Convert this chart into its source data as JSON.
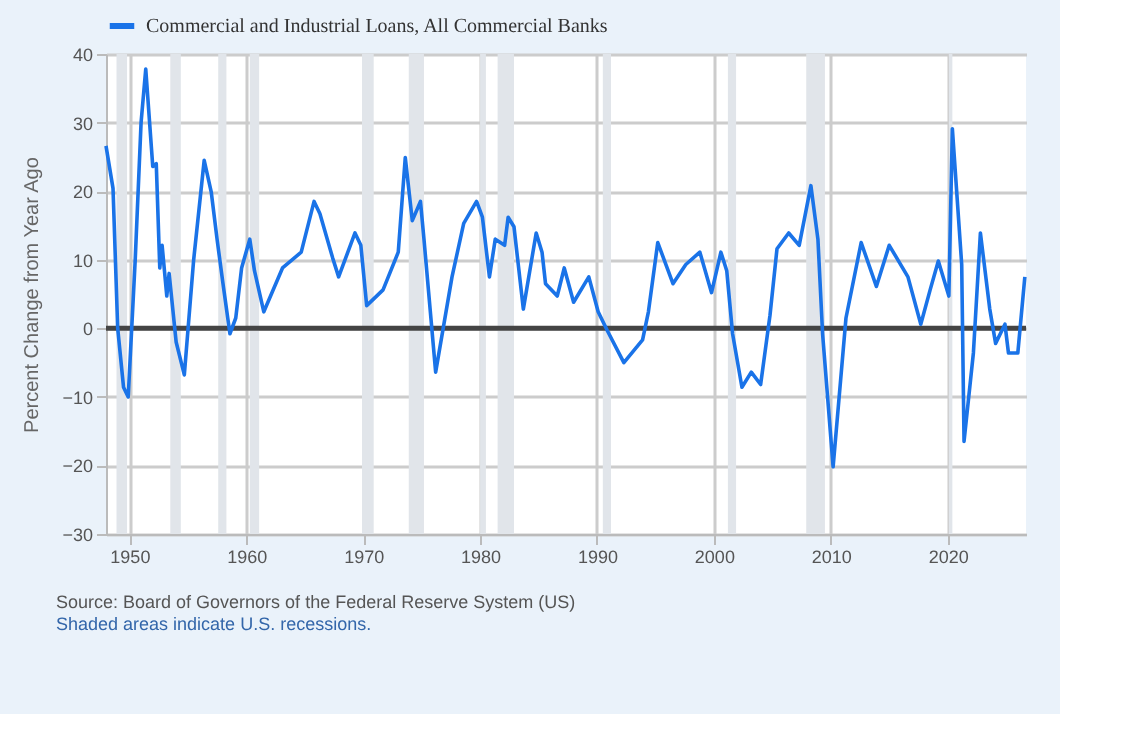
{
  "chart_data": {
    "type": "line",
    "ylabel": "Percent Change from Year Ago",
    "xlim": [
      1948,
      2026.7
    ],
    "xticks": [
      1950,
      1960,
      1970,
      1980,
      1990,
      2000,
      2010,
      2020
    ],
    "ylim": [
      -30,
      40
    ],
    "yticks": [
      -30,
      -20,
      -10,
      0,
      10,
      20,
      30,
      40
    ],
    "grid": true,
    "legend": "top left",
    "marker": "none",
    "line_style": "solid",
    "series": [
      {
        "name": "Commercial and Industrial Loans, All Commercial Banks",
        "color": "#1a73e8",
        "x": [
          1948.0,
          1948.6,
          1949.0,
          1949.5,
          1949.9,
          1950.5,
          1951.0,
          1951.4,
          1952.0,
          1952.3,
          1952.6,
          1952.8,
          1953.2,
          1953.4,
          1954.0,
          1954.7,
          1955.5,
          1956.4,
          1957.0,
          1957.5,
          1958.0,
          1958.6,
          1959.1,
          1959.6,
          1960.3,
          1960.7,
          1961.5,
          1963.1,
          1964.7,
          1965.8,
          1966.3,
          1967.4,
          1967.9,
          1969.3,
          1969.8,
          1970.3,
          1971.7,
          1973.0,
          1973.6,
          1974.2,
          1974.9,
          1975.2,
          1976.2,
          1977.6,
          1978.6,
          1979.7,
          1980.2,
          1980.8,
          1981.3,
          1982.1,
          1982.4,
          1982.9,
          1983.7,
          1984.8,
          1985.3,
          1985.6,
          1986.6,
          1987.2,
          1988.0,
          1989.3,
          1990.1,
          1990.9,
          1992.3,
          1993.9,
          1994.4,
          1995.2,
          1996.5,
          1997.6,
          1998.8,
          1999.8,
          2000.6,
          2001.1,
          2001.6,
          2002.4,
          2003.2,
          2004.0,
          2004.8,
          2005.4,
          2006.4,
          2007.3,
          2008.3,
          2008.9,
          2009.3,
          2010.2,
          2011.3,
          2012.6,
          2013.9,
          2015.0,
          2016.6,
          2017.7,
          2018.5,
          2019.2,
          2020.1,
          2020.4,
          2021.2,
          2021.4,
          2022.2,
          2022.8,
          2023.6,
          2024.1,
          2024.9,
          2025.2,
          2026.0,
          2026.6
        ],
        "values": [
          26.6,
          20.4,
          0,
          -8.6,
          -10.0,
          10,
          30,
          37.8,
          23.6,
          24,
          8.8,
          12.1,
          4.7,
          8,
          -2,
          -6.8,
          10,
          24.5,
          19.9,
          13,
          6.6,
          -0.8,
          1.5,
          8.8,
          13,
          8.4,
          2.4,
          8.8,
          11.1,
          18.5,
          16.7,
          10.2,
          7.5,
          13.9,
          12.1,
          3.3,
          5.6,
          11.1,
          24.9,
          15.7,
          18.5,
          13,
          -6.4,
          7.5,
          15.3,
          18.5,
          16.2,
          7.5,
          13,
          12.1,
          16.2,
          14.8,
          2.8,
          13.9,
          11.1,
          6.5,
          4.7,
          8.8,
          3.8,
          7.5,
          2.4,
          -0.4,
          -5.0,
          -1.7,
          2.4,
          12.5,
          6.5,
          9.3,
          11.1,
          5.2,
          11.1,
          8.4,
          -0.8,
          -8.6,
          -6.4,
          -8.2,
          1.9,
          11.6,
          13.9,
          12.1,
          20.8,
          13,
          -0.8,
          -20.2,
          1.5,
          12.5,
          6.1,
          12.1,
          7.5,
          0.6,
          5.6,
          9.8,
          4.7,
          29.1,
          9.3,
          -16.5,
          -3.6,
          13.9,
          2.8,
          -2.2,
          0.6,
          -3.6,
          -3.6,
          7.5
        ]
      }
    ],
    "ref_lines": [
      {
        "axis": "y",
        "value": 0,
        "color": "#444444"
      }
    ],
    "bands": [
      {
        "axis": "x",
        "from": 1948.9,
        "to": 1949.8,
        "color": "#e1e5ea"
      },
      {
        "axis": "x",
        "from": 1953.5,
        "to": 1954.4,
        "color": "#e1e5ea"
      },
      {
        "axis": "x",
        "from": 1957.6,
        "to": 1958.3,
        "color": "#e1e5ea"
      },
      {
        "axis": "x",
        "from": 1960.3,
        "to": 1961.1,
        "color": "#e1e5ea"
      },
      {
        "axis": "x",
        "from": 1969.9,
        "to": 1970.9,
        "color": "#e1e5ea"
      },
      {
        "axis": "x",
        "from": 1973.9,
        "to": 1975.2,
        "color": "#e1e5ea"
      },
      {
        "axis": "x",
        "from": 1980.0,
        "to": 1980.5,
        "color": "#e1e5ea"
      },
      {
        "axis": "x",
        "from": 1981.5,
        "to": 1982.9,
        "color": "#e1e5ea"
      },
      {
        "axis": "x",
        "from": 1990.5,
        "to": 1991.2,
        "color": "#e1e5ea"
      },
      {
        "axis": "x",
        "from": 2001.2,
        "to": 2001.9,
        "color": "#e1e5ea"
      },
      {
        "axis": "x",
        "from": 2007.9,
        "to": 2009.5,
        "color": "#e1e5ea"
      },
      {
        "axis": "x",
        "from": 2020.1,
        "to": 2020.4,
        "color": "#e1e5ea"
      }
    ],
    "annotations": [
      "Source: Board of Governors of the Federal Reserve System (US)",
      "Shaded areas indicate U.S. recessions."
    ]
  }
}
